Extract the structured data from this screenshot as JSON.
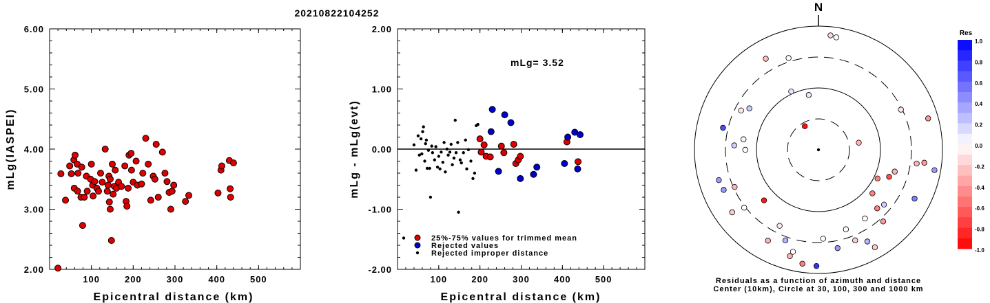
{
  "figure_title": "20210822104252",
  "chart_data": [
    {
      "type": "scatter",
      "panel": "magnitude-vs-distance",
      "xlabel": "Epicentral distance (km)",
      "ylabel": "mLg(IASPEI)",
      "xlim": [
        0,
        600
      ],
      "ylim": [
        2.0,
        6.0
      ],
      "x_ticks": [
        "100",
        "200",
        "300",
        "400",
        "500"
      ],
      "y_ticks": [
        "2.00",
        "3.00",
        "4.00",
        "5.00",
        "6.00"
      ],
      "marker_color": "#dd0000",
      "points": [
        [
          20,
          2.02
        ],
        [
          27,
          3.59
        ],
        [
          38,
          3.15
        ],
        [
          48,
          3.72
        ],
        [
          52,
          3.59
        ],
        [
          58,
          3.82
        ],
        [
          61,
          3.9
        ],
        [
          59,
          3.35
        ],
        [
          66,
          3.75
        ],
        [
          68,
          3.6
        ],
        [
          67,
          3.3
        ],
        [
          75,
          3.2
        ],
        [
          77,
          3.7
        ],
        [
          79,
          2.73
        ],
        [
          83,
          3.2
        ],
        [
          88,
          3.55
        ],
        [
          90,
          3.3
        ],
        [
          98,
          3.5
        ],
        [
          100,
          3.75
        ],
        [
          103,
          3.4
        ],
        [
          104,
          3.22
        ],
        [
          108,
          3.46
        ],
        [
          113,
          3.35
        ],
        [
          117,
          3.3
        ],
        [
          122,
          3.6
        ],
        [
          126,
          3.45
        ],
        [
          133,
          4.0
        ],
        [
          138,
          3.3
        ],
        [
          140,
          3.4
        ],
        [
          142,
          3.55
        ],
        [
          143,
          3.12
        ],
        [
          145,
          3.5
        ],
        [
          145,
          3.0
        ],
        [
          148,
          2.48
        ],
        [
          150,
          3.75
        ],
        [
          152,
          3.25
        ],
        [
          155,
          3.38
        ],
        [
          157,
          3.65
        ],
        [
          160,
          3.35
        ],
        [
          165,
          3.45
        ],
        [
          172,
          3.38
        ],
        [
          180,
          3.72
        ],
        [
          183,
          3.13
        ],
        [
          185,
          3.05
        ],
        [
          188,
          3.35
        ],
        [
          190,
          3.9
        ],
        [
          195,
          3.93
        ],
        [
          196,
          3.65
        ],
        [
          200,
          3.45
        ],
        [
          207,
          3.8
        ],
        [
          210,
          3.4
        ],
        [
          220,
          3.42
        ],
        [
          223,
          3.6
        ],
        [
          230,
          4.18
        ],
        [
          236,
          3.75
        ],
        [
          242,
          3.15
        ],
        [
          248,
          3.55
        ],
        [
          252,
          3.5
        ],
        [
          255,
          4.08
        ],
        [
          260,
          3.2
        ],
        [
          270,
          3.95
        ],
        [
          276,
          3.6
        ],
        [
          281,
          3.46
        ],
        [
          286,
          3.28
        ],
        [
          290,
          3.0
        ],
        [
          293,
          3.3
        ],
        [
          297,
          3.4
        ],
        [
          325,
          3.13
        ],
        [
          333,
          3.23
        ],
        [
          403,
          3.27
        ],
        [
          410,
          3.65
        ],
        [
          412,
          3.72
        ],
        [
          430,
          3.81
        ],
        [
          432,
          3.34
        ],
        [
          433,
          3.2
        ],
        [
          440,
          3.77
        ]
      ]
    },
    {
      "type": "scatter",
      "panel": "residual-vs-distance",
      "xlabel": "Epicentral distance (km)",
      "ylabel": "mLg - mLg(evt)",
      "xlim": [
        0,
        600
      ],
      "ylim": [
        -2.0,
        2.0
      ],
      "x_ticks": [
        "100",
        "200",
        "300",
        "400",
        "500"
      ],
      "y_ticks": [
        "-2.00",
        "-1.00",
        "0.00",
        "1.00",
        "2.00"
      ],
      "annotation": "mLg= 3.52",
      "zero_line": 0.0,
      "legend": [
        {
          "label": "25%-75% values for trimmed mean",
          "color": "#dd0000"
        },
        {
          "label": "Rejected values",
          "color": "#0000cc"
        },
        {
          "label": "Rejected improper distance",
          "color": "#000000"
        }
      ],
      "series": [
        {
          "name": "25%-75% values for trimmed mean",
          "color": "#dd0000",
          "points": [
            [
              200,
              0.17
            ],
            [
              203,
              -0.05
            ],
            [
              210,
              0.07
            ],
            [
              215,
              -0.12
            ],
            [
              225,
              -0.13
            ],
            [
              252,
              0.05
            ],
            [
              258,
              -0.06
            ],
            [
              282,
              0.08
            ],
            [
              287,
              -0.24
            ],
            [
              293,
              -0.18
            ],
            [
              298,
              -0.12
            ],
            [
              411,
              0.12
            ],
            [
              438,
              -0.21
            ]
          ]
        },
        {
          "name": "Rejected values",
          "color": "#0000cc",
          "points": [
            [
              227,
              0.29
            ],
            [
              230,
              0.66
            ],
            [
              245,
              -0.37
            ],
            [
              260,
              0.57
            ],
            [
              275,
              0.44
            ],
            [
              298,
              -0.49
            ],
            [
              330,
              -0.42
            ],
            [
              338,
              -0.3
            ],
            [
              405,
              -0.24
            ],
            [
              413,
              0.2
            ],
            [
              430,
              0.28
            ],
            [
              437,
              -0.33
            ],
            [
              443,
              0.24
            ]
          ]
        },
        {
          "name": "Rejected improper distance",
          "color": "#000000",
          "points": [
            [
              15,
              -1.48
            ],
            [
              40,
              0.07
            ],
            [
              45,
              -0.35
            ],
            [
              50,
              0.22
            ],
            [
              53,
              -0.1
            ],
            [
              57,
              0.17
            ],
            [
              59,
              -0.08
            ],
            [
              61,
              0.29
            ],
            [
              63,
              0.37
            ],
            [
              66,
              -0.2
            ],
            [
              68,
              0.09
            ],
            [
              70,
              0.15
            ],
            [
              72,
              -0.32
            ],
            [
              75,
              -0.02
            ],
            [
              78,
              -0.32
            ],
            [
              80,
              -0.8
            ],
            [
              83,
              0.05
            ],
            [
              85,
              -0.06
            ],
            [
              90,
              -0.18
            ],
            [
              93,
              0.04
            ],
            [
              97,
              -0.3
            ],
            [
              100,
              -0.12
            ],
            [
              103,
              -0.33
            ],
            [
              106,
              -0.05
            ],
            [
              110,
              -0.22
            ],
            [
              113,
              0.11
            ],
            [
              116,
              -0.38
            ],
            [
              120,
              0.0
            ],
            [
              123,
              -0.1
            ],
            [
              127,
              -0.05
            ],
            [
              130,
              0.08
            ],
            [
              133,
              -0.26
            ],
            [
              137,
              -0.15
            ],
            [
              140,
              0.48
            ],
            [
              142,
              -0.06
            ],
            [
              146,
              0.11
            ],
            [
              148,
              -1.05
            ],
            [
              152,
              -0.18
            ],
            [
              155,
              -0.23
            ],
            [
              160,
              -0.06
            ],
            [
              165,
              0.15
            ],
            [
              168,
              -0.33
            ],
            [
              172,
              -0.01
            ],
            [
              178,
              -0.2
            ],
            [
              183,
              -0.49
            ],
            [
              187,
              -0.4
            ],
            [
              191,
              0.39
            ],
            [
              195,
              0.41
            ]
          ]
        }
      ]
    },
    {
      "type": "polar-scatter",
      "panel": "azimuth-residual-map",
      "north_label": "N",
      "caption_line1": "Residuals as a function of azimuth and distance",
      "caption_line2": "Center (10km), Circle at 30, 100, 300 and 1000 km",
      "colorbar_title": "Res",
      "colorbar_ticks": [
        "1.0",
        "0.8",
        "0.6",
        "0.4",
        "0.2",
        "0.0",
        "-0.2",
        "-0.4",
        "-0.6",
        "-0.8",
        "-1.0"
      ],
      "colorbar_range": [
        -1.0,
        1.0
      ],
      "positive_color": "#0000ff",
      "negative_color": "#ff0000",
      "stations": [
        {
          "az": 330,
          "r": 0.22,
          "res": -0.95
        },
        {
          "az": 330,
          "r": 0.85,
          "res": -0.25
        },
        {
          "az": 6,
          "r": 0.93,
          "res": -0.15
        },
        {
          "az": 9,
          "r": 0.92,
          "res": 0.0
        },
        {
          "az": 342,
          "r": 0.78,
          "res": 0.0
        },
        {
          "az": 335,
          "r": 0.52,
          "res": 0.1
        },
        {
          "az": 350,
          "r": 0.45,
          "res": 0.1
        },
        {
          "az": 301,
          "r": 0.65,
          "res": 0.2
        },
        {
          "az": 297,
          "r": 0.7,
          "res": -0.1
        },
        {
          "az": 283,
          "r": 0.79,
          "res": 0.7
        },
        {
          "az": 278,
          "r": 0.61,
          "res": -0.05
        },
        {
          "az": 273,
          "r": 0.68,
          "res": 0.2
        },
        {
          "az": 270,
          "r": 0.59,
          "res": 0.0
        },
        {
          "az": 246,
          "r": 0.74,
          "res": -0.3
        },
        {
          "az": 253,
          "r": 0.84,
          "res": 0.4
        },
        {
          "az": 247,
          "r": 0.83,
          "res": 0.4
        },
        {
          "az": 234,
          "r": 0.86,
          "res": -0.2
        },
        {
          "az": 232,
          "r": 0.76,
          "res": 0.0
        },
        {
          "az": 227,
          "r": 0.6,
          "res": -0.9
        },
        {
          "az": 207,
          "r": 0.69,
          "res": -0.1
        },
        {
          "az": 209,
          "r": 0.84,
          "res": -0.3
        },
        {
          "az": 200,
          "r": 0.78,
          "res": 0.3
        },
        {
          "az": 195,
          "r": 0.89,
          "res": -0.3
        },
        {
          "az": 194,
          "r": 0.85,
          "res": 0.0
        },
        {
          "az": 188,
          "r": 0.93,
          "res": -0.5
        },
        {
          "az": 181,
          "r": 0.94,
          "res": 0.8
        },
        {
          "az": 177,
          "r": 0.72,
          "res": 0.0
        },
        {
          "az": 169,
          "r": 0.81,
          "res": 0.4
        },
        {
          "az": 161,
          "r": 0.68,
          "res": 0.0
        },
        {
          "az": 158,
          "r": 0.79,
          "res": -0.2
        },
        {
          "az": 152,
          "r": 0.84,
          "res": 0.3
        },
        {
          "az": 150,
          "r": 0.91,
          "res": -0.2
        },
        {
          "az": 146,
          "r": 0.67,
          "res": 0.0
        },
        {
          "az": 138,
          "r": 0.78,
          "res": -0.4
        },
        {
          "az": 135,
          "r": 0.67,
          "res": -0.5
        },
        {
          "az": 130,
          "r": 0.69,
          "res": 0.2
        },
        {
          "az": 129,
          "r": 0.56,
          "res": -0.5
        },
        {
          "az": 117,
          "r": 0.87,
          "res": 0.5
        },
        {
          "az": 116,
          "r": 0.53,
          "res": -0.5
        },
        {
          "az": 111,
          "r": 0.61,
          "res": -0.7
        },
        {
          "az": 106,
          "r": 0.64,
          "res": -0.3
        },
        {
          "az": 98,
          "r": 0.8,
          "res": -0.3
        },
        {
          "az": 80,
          "r": 0.33,
          "res": -0.3
        },
        {
          "az": 64,
          "r": 0.74,
          "res": -0.1
        },
        {
          "az": 100,
          "r": 0.95,
          "res": 0.4
        },
        {
          "az": 97,
          "r": 0.86,
          "res": -0.4
        },
        {
          "az": 74,
          "r": 0.92,
          "res": -0.4
        }
      ]
    }
  ]
}
